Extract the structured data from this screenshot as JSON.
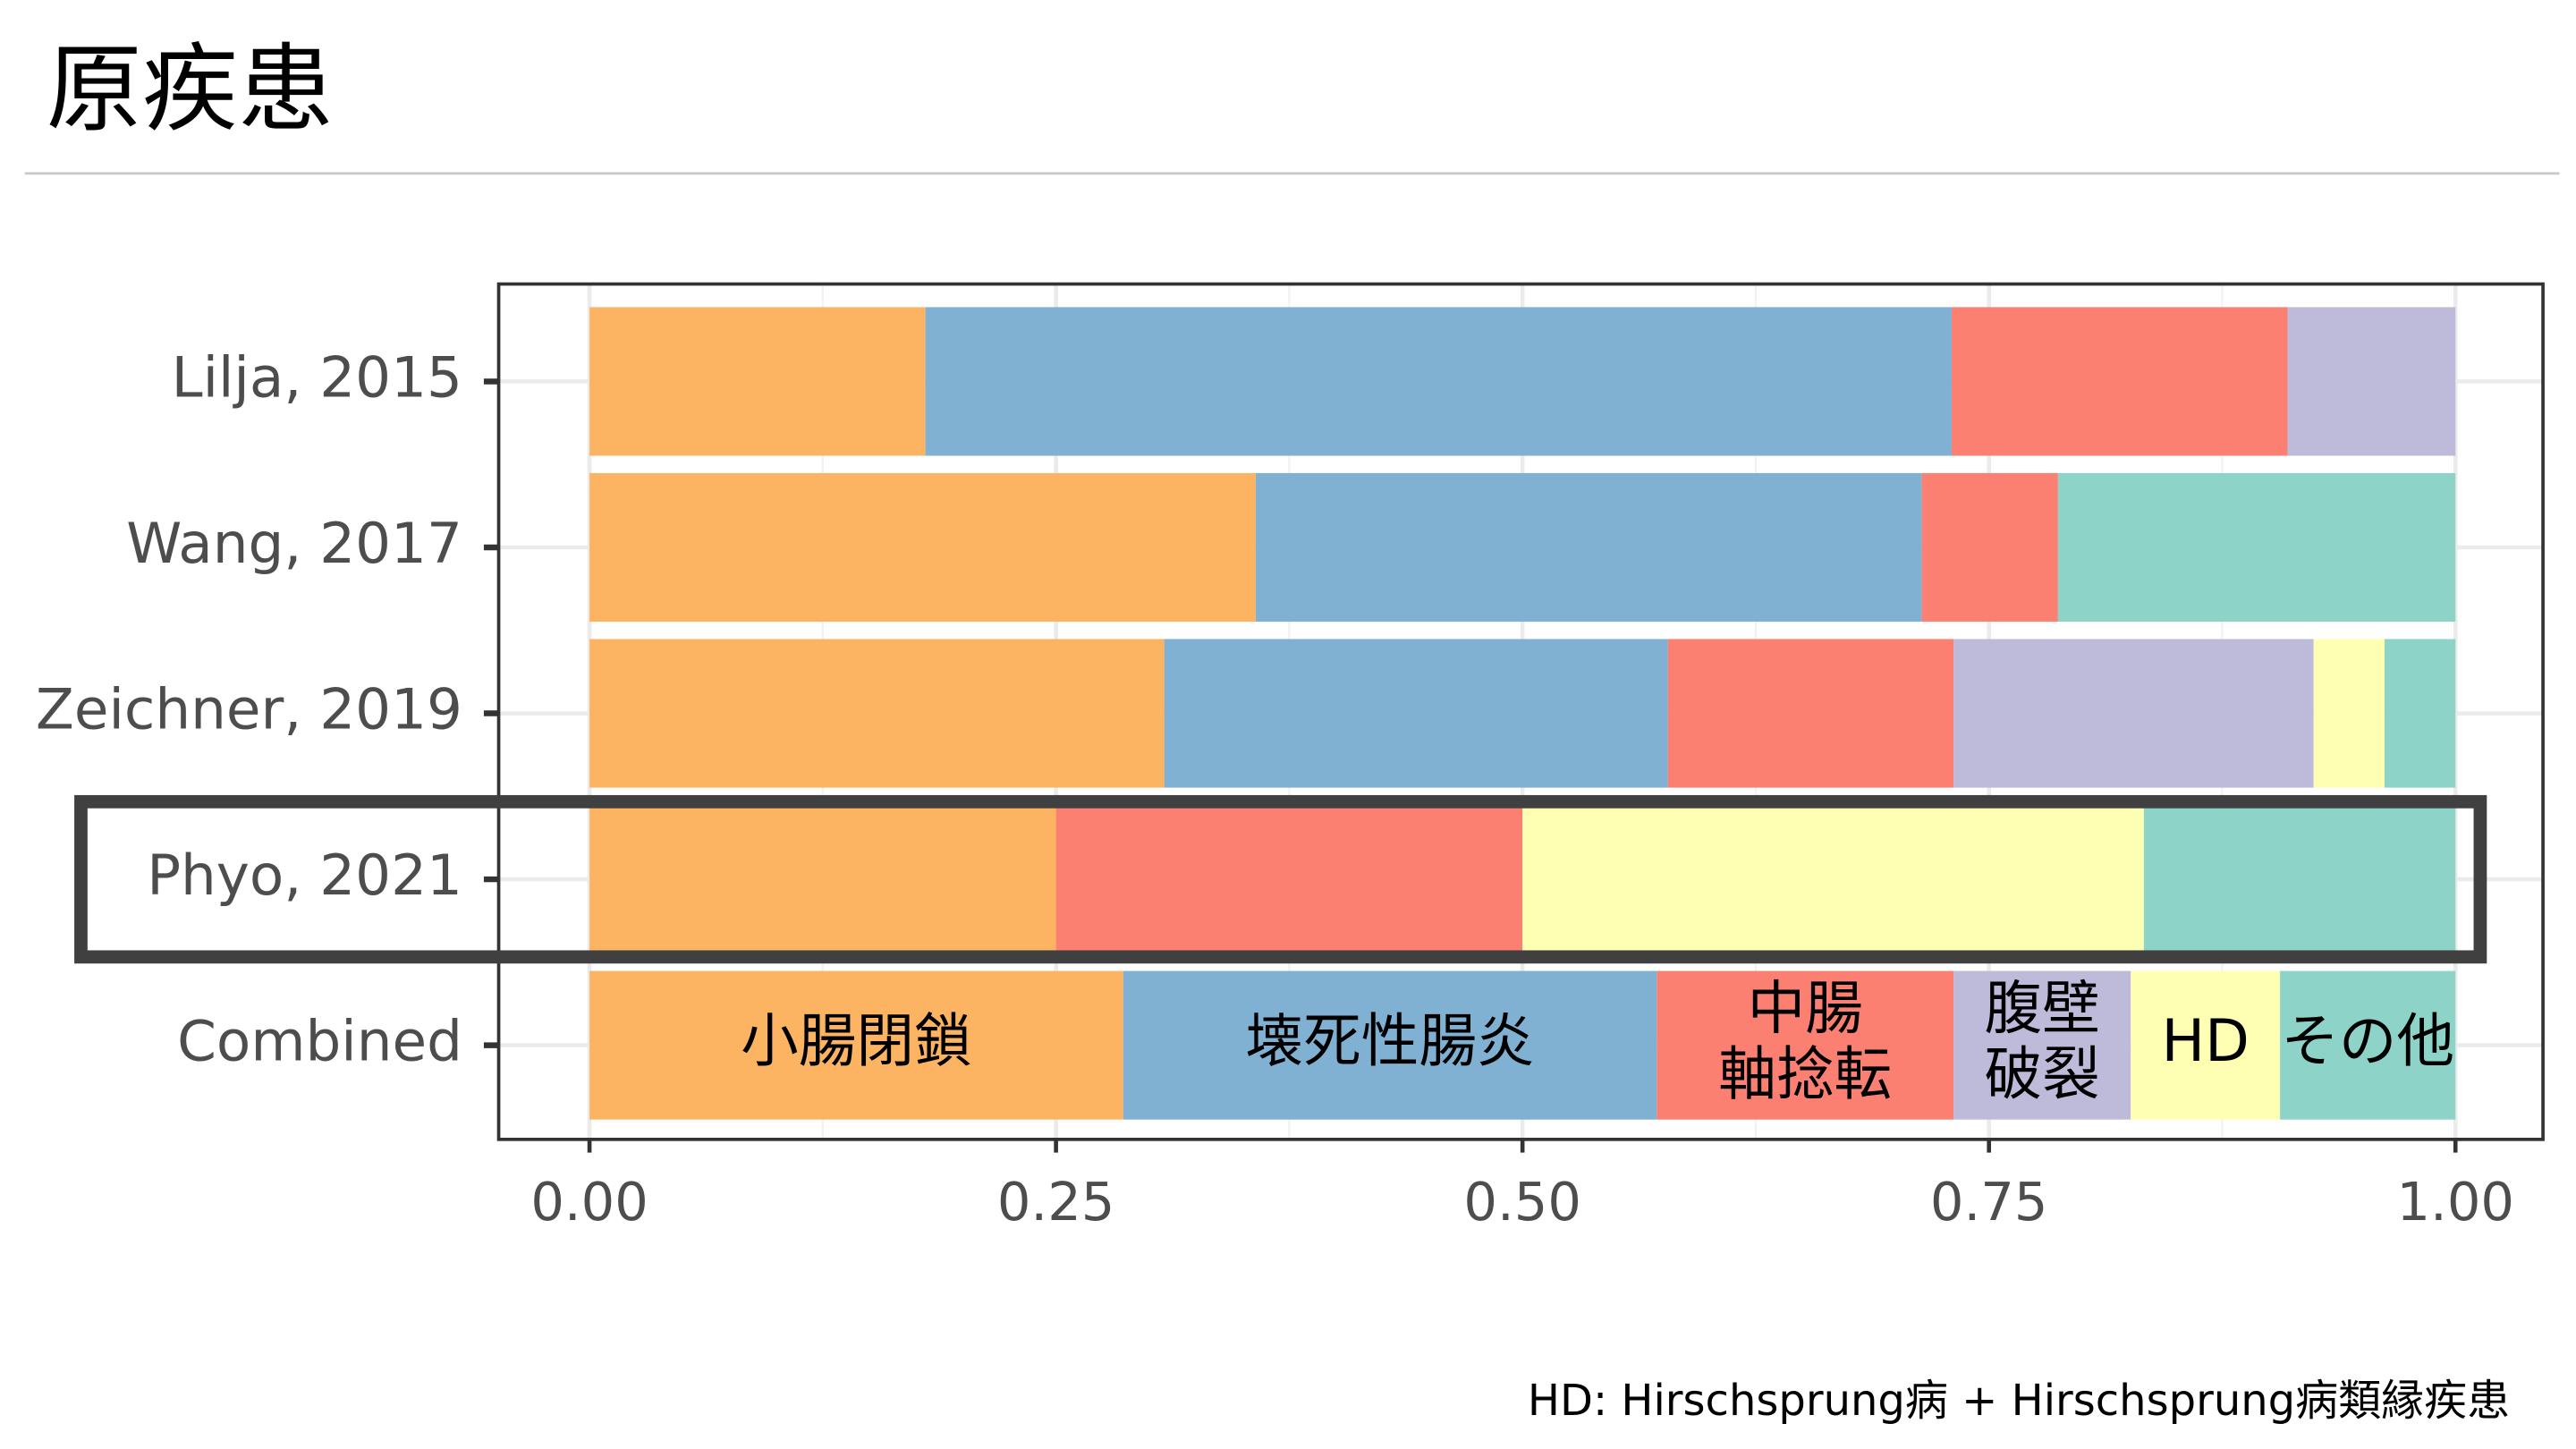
{
  "chart_data": {
    "type": "stacked_barh",
    "title": "原疾患",
    "caption": "HD: Hirschsprung病 + Hirschsprung病類縁疾患",
    "categories": [
      "Lilja, 2015",
      "Wang, 2017",
      "Zeichner, 2019",
      "Phyo, 2021",
      "Combined"
    ],
    "series": [
      {
        "name_lines": [
          "小腸閉鎖"
        ],
        "color": "#FDB462",
        "values": [
          0.18,
          0.357,
          0.308,
          0.25,
          0.286
        ]
      },
      {
        "name_lines": [
          "壊死性腸炎"
        ],
        "color": "#80B1D3",
        "values": [
          0.55,
          0.357,
          0.27,
          0,
          0.286
        ]
      },
      {
        "name_lines": [
          "中腸",
          "軸捻転"
        ],
        "color": "#FB8072",
        "values": [
          0.18,
          0.073,
          0.153,
          0.25,
          0.159
        ]
      },
      {
        "name_lines": [
          "腹壁",
          "破裂"
        ],
        "color": "#BEBADA",
        "values": [
          0.09,
          0,
          0.193,
          0,
          0.095
        ]
      },
      {
        "name_lines": [
          "HD"
        ],
        "color": "#FFFFB3",
        "values": [
          0,
          0,
          0.038,
          0.333,
          0.08
        ]
      },
      {
        "name_lines": [
          "その他"
        ],
        "color": "#8DD3C7",
        "values": [
          0,
          0.213,
          0.038,
          0.167,
          0.094
        ]
      }
    ],
    "xlim": [
      0,
      1
    ],
    "xticks": [
      {
        "value": 0,
        "label": "0.00"
      },
      {
        "value": 0.25,
        "label": "0.25"
      },
      {
        "value": 0.5,
        "label": "0.50"
      },
      {
        "value": 0.75,
        "label": "0.75"
      },
      {
        "value": 1,
        "label": "1.00"
      }
    ],
    "grid": true,
    "highlight_category": 3,
    "labelled_category": 4
  }
}
